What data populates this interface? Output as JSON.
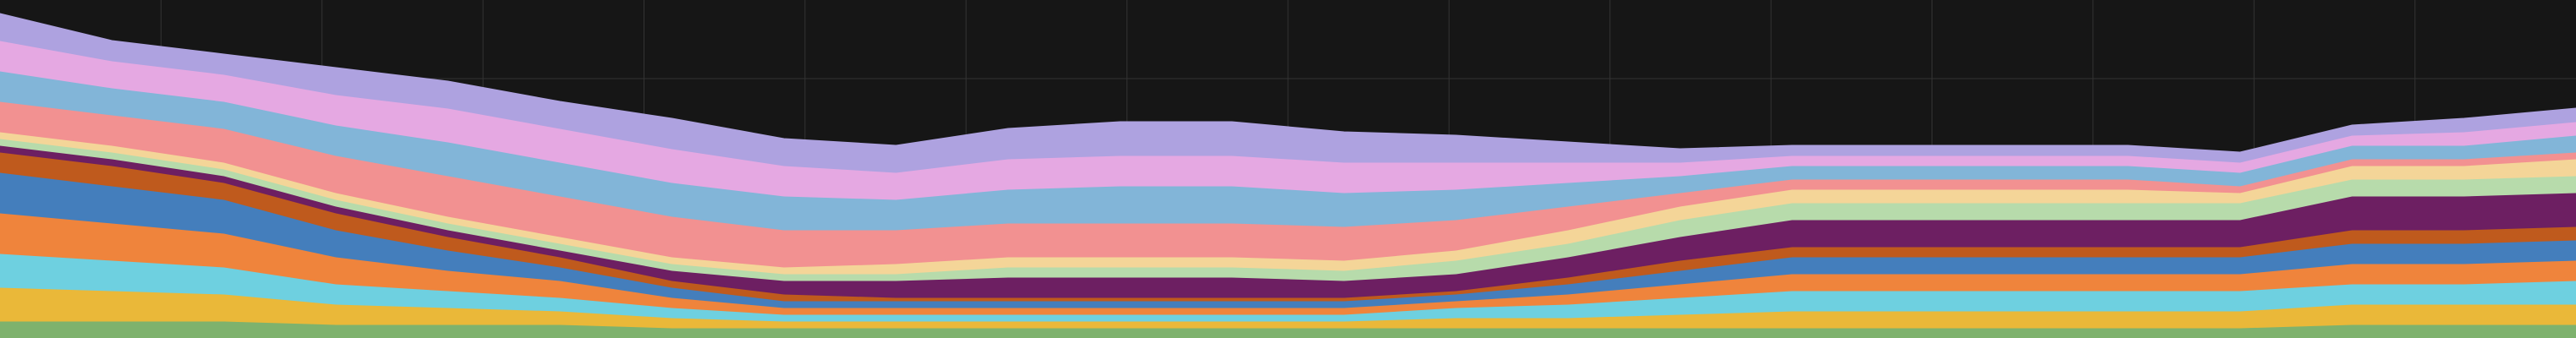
{
  "chart_data": {
    "type": "stacked-area",
    "x": [
      0,
      1,
      2,
      3,
      4,
      5,
      6,
      7,
      8,
      9,
      10,
      11,
      12,
      13,
      14,
      15,
      16,
      17,
      18,
      19,
      20,
      21,
      22,
      23
    ],
    "xlim": [
      0,
      23
    ],
    "ylim": [
      0,
      100
    ],
    "grid": true,
    "series": [
      {
        "color": "#7eb26d",
        "values": [
          5,
          5,
          5,
          4,
          4,
          4,
          3,
          3,
          3,
          3,
          3,
          3,
          3,
          3,
          3,
          3,
          3,
          3,
          3,
          3,
          3,
          4,
          4,
          4
        ]
      },
      {
        "color": "#eab839",
        "values": [
          10,
          9,
          8,
          6,
          5,
          4,
          3,
          2,
          2,
          2,
          2,
          2,
          2,
          3,
          3,
          4,
          5,
          5,
          5,
          5,
          5,
          6,
          6,
          6
        ]
      },
      {
        "color": "#6ed0e0",
        "values": [
          10,
          9,
          8,
          6,
          5,
          4,
          3,
          2,
          2,
          2,
          2,
          2,
          2,
          3,
          4,
          5,
          6,
          6,
          6,
          6,
          6,
          6,
          6,
          7
        ]
      },
      {
        "color": "#ef843c",
        "values": [
          12,
          11,
          10,
          8,
          6,
          5,
          3,
          2,
          2,
          2,
          2,
          2,
          2,
          2,
          3,
          4,
          5,
          5,
          5,
          5,
          5,
          6,
          6,
          6
        ]
      },
      {
        "color": "#447ebc",
        "values": [
          12,
          11,
          10,
          8,
          6,
          4,
          3,
          2,
          2,
          2,
          2,
          2,
          2,
          2,
          3,
          4,
          5,
          5,
          5,
          5,
          5,
          6,
          6,
          6
        ]
      },
      {
        "color": "#bf5a1d",
        "values": [
          6,
          6,
          5,
          5,
          4,
          3,
          2,
          2,
          1,
          1,
          1,
          1,
          1,
          1,
          2,
          3,
          3,
          3,
          3,
          3,
          3,
          4,
          4,
          4
        ]
      },
      {
        "color": "#6d1f62",
        "values": [
          2,
          2,
          2,
          2,
          2,
          2,
          3,
          4,
          5,
          6,
          6,
          6,
          5,
          5,
          6,
          7,
          8,
          8,
          8,
          8,
          8,
          10,
          10,
          10
        ]
      },
      {
        "color": "#b7dbab",
        "values": [
          2,
          2,
          2,
          2,
          2,
          2,
          2,
          2,
          2,
          3,
          3,
          3,
          3,
          4,
          4,
          5,
          5,
          5,
          5,
          5,
          5,
          5,
          5,
          5
        ]
      },
      {
        "color": "#f4d598",
        "values": [
          2,
          2,
          2,
          2,
          2,
          2,
          2,
          2,
          3,
          3,
          3,
          3,
          3,
          3,
          4,
          4,
          4,
          4,
          4,
          4,
          3,
          4,
          4,
          5
        ]
      },
      {
        "color": "#f29191",
        "values": [
          9,
          9,
          10,
          11,
          12,
          12,
          12,
          11,
          10,
          10,
          10,
          10,
          10,
          9,
          7,
          4,
          3,
          3,
          3,
          3,
          2,
          2,
          2,
          2
        ]
      },
      {
        "color": "#82b5d8",
        "values": [
          9,
          8,
          8,
          9,
          10,
          10,
          10,
          10,
          9,
          10,
          11,
          11,
          10,
          9,
          7,
          5,
          4,
          4,
          4,
          4,
          4,
          4,
          4,
          5
        ]
      },
      {
        "color": "#e5a8e2",
        "values": [
          9,
          8,
          8,
          9,
          10,
          10,
          10,
          9,
          8,
          9,
          9,
          9,
          9,
          8,
          6,
          4,
          3,
          3,
          3,
          3,
          3,
          3,
          4,
          4
        ]
      },
      {
        "color": "#aea2e0",
        "values": [
          8,
          6,
          6,
          8,
          8,
          8,
          9,
          8,
          8,
          9,
          10,
          10,
          9,
          8,
          6,
          4,
          3,
          3,
          3,
          3,
          3,
          3,
          4,
          4
        ]
      }
    ]
  }
}
